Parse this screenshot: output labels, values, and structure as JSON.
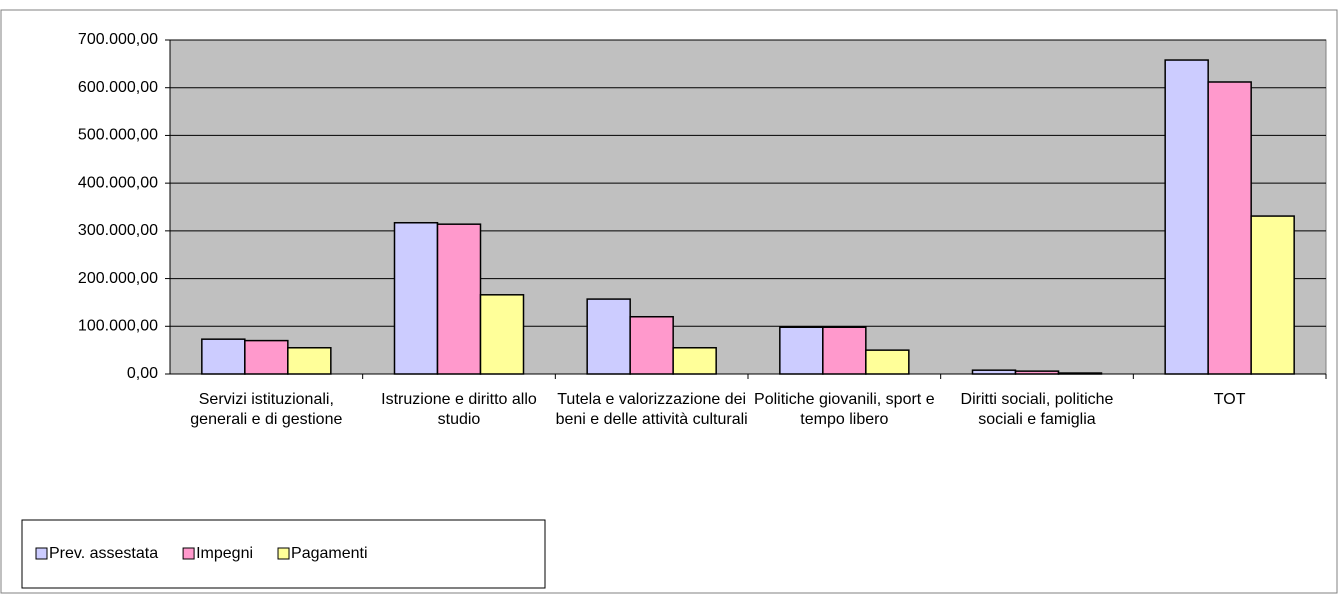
{
  "chart_data": {
    "type": "bar",
    "categories": [
      "Servizi istituzionali, generali e di gestione",
      "Istruzione e diritto allo studio",
      "Tutela e valorizzazione dei beni e delle attività culturali",
      "Politiche giovanili, sport e tempo libero",
      "Diritti sociali, politiche sociali e famiglia",
      "TOT"
    ],
    "series": [
      {
        "name": "Prev. assestata",
        "color": "#ccccff",
        "values": [
          73000,
          317000,
          157000,
          98000,
          8000,
          658000
        ]
      },
      {
        "name": "Impegni",
        "color": "#ff99cc",
        "values": [
          70000,
          314000,
          120000,
          98000,
          6000,
          612000
        ]
      },
      {
        "name": "Pagamenti",
        "color": "#ffff99",
        "values": [
          55000,
          166000,
          55000,
          50000,
          2000,
          331000
        ]
      }
    ],
    "ylim": [
      0,
      700000
    ],
    "yticks": [
      {
        "value": 0,
        "label": "0,00"
      },
      {
        "value": 100000,
        "label": "100.000,00"
      },
      {
        "value": 200000,
        "label": "200.000,00"
      },
      {
        "value": 300000,
        "label": "300.000,00"
      },
      {
        "value": 400000,
        "label": "400.000,00"
      },
      {
        "value": 500000,
        "label": "500.000,00"
      },
      {
        "value": 600000,
        "label": "600.000,00"
      },
      {
        "value": 700000,
        "label": "700.000,00"
      }
    ],
    "grid": true,
    "legend": "bottom-left",
    "plot_background": "#c0c0c0"
  }
}
